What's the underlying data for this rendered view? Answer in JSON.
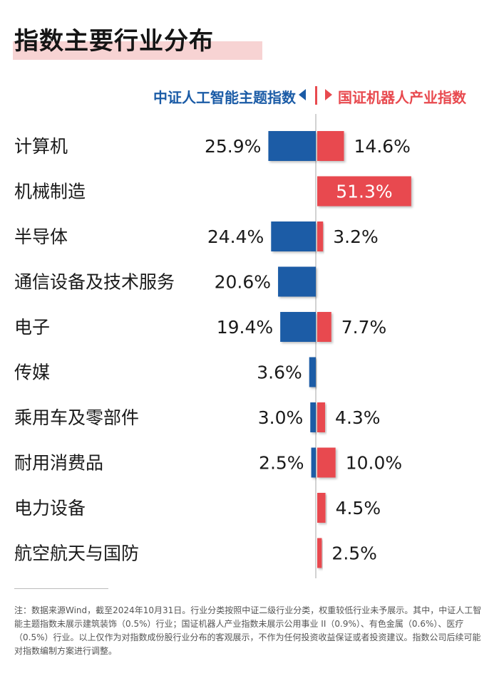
{
  "title": "指数主要行业分布",
  "legend": {
    "left": "中证人工智能主题指数",
    "right": "国证机器人产业指数"
  },
  "colors": {
    "left": "#1a5ba6",
    "right": "#e84a4f"
  },
  "chart_data": {
    "type": "bar",
    "orientation": "horizontal-diverging",
    "categories": [
      "计算机",
      "机械制造",
      "半导体",
      "通信设备及技术服务",
      "电子",
      "传媒",
      "乘用车及零部件",
      "耐用消费品",
      "电力设备",
      "航空航天与国防"
    ],
    "series": [
      {
        "name": "中证人工智能主题指数",
        "values": [
          25.9,
          null,
          24.4,
          20.6,
          19.4,
          3.6,
          3.0,
          2.5,
          null,
          null
        ]
      },
      {
        "name": "国证机器人产业指数",
        "values": [
          14.6,
          51.3,
          3.2,
          null,
          7.7,
          null,
          4.3,
          10.0,
          4.5,
          2.5
        ]
      }
    ],
    "labels_left": [
      "25.9%",
      "",
      "24.4%",
      "20.6%",
      "19.4%",
      "3.6%",
      "3.0%",
      "2.5%",
      "",
      ""
    ],
    "labels_right": [
      "14.6%",
      "51.3%",
      "3.2%",
      "",
      "7.7%",
      "",
      "4.3%",
      "10.0%",
      "4.5%",
      "2.5%"
    ],
    "unit": "%"
  },
  "note": "注：数据来源Wind，截至2024年10月31日。行业分类按照中证二级行业分类，权重较低行业未予展示。其中，中证人工智能主题指数未展示建筑装饰（0.5%）行业；国证机器人产业指数未展示公用事业 II（0.9%）、有色金属（0.6%）、医疗（0.5%）行业。以上仅作为对指数成份股行业分布的客观展示，不作为任何投资收益保证或者投资建议。指数公司后续可能对指数编制方案进行调整。"
}
